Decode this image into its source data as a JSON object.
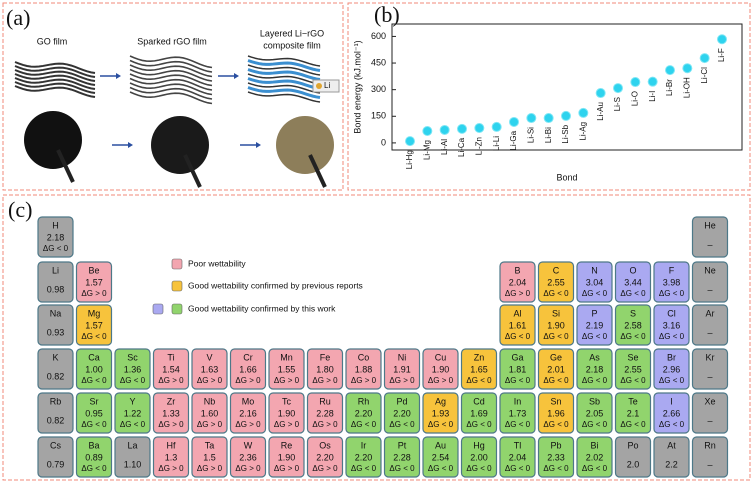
{
  "panel_a": {
    "tag": "(a)",
    "labels": [
      [
        "GO film"
      ],
      [
        "Sparked rGO film"
      ],
      [
        "Layered Li−rGO",
        "composite film"
      ]
    ],
    "legend": "Li"
  },
  "chart_data": {
    "type": "scatter",
    "tag": "(b)",
    "y_label": "Bond energy (kJ.mol⁻¹)",
    "x_label": "Bond",
    "categories": [
      "Li-Hg",
      "Li-Mg",
      "Li-Al",
      "Li-Ca",
      "Li-Zn",
      "Li-Li",
      "Li-Ga",
      "Li-Si",
      "Li-Bi",
      "Li-Sb",
      "Li-Ag",
      "Li-Au",
      "Li-S",
      "Li-O",
      "Li-I",
      "Li-Br",
      "Li-OH",
      "Li-Cl",
      "Li-F"
    ],
    "values": [
      10,
      67,
      73,
      79,
      84,
      90,
      118,
      140,
      140,
      152,
      169,
      281,
      309,
      343,
      345,
      410,
      421,
      478,
      584
    ],
    "label_colors": [
      "#222",
      "#222",
      "#222",
      "#222",
      "#222",
      "#3cb521",
      "#222",
      "#222",
      "#222",
      "#222",
      "#222",
      "#222",
      "#222",
      "#e32119",
      "#2a36c8",
      "#2a36c8",
      "#2a36c8",
      "#2a36c8",
      "#2a36c8"
    ],
    "color": "#2ed3ee",
    "ylim": [
      -40,
      670
    ],
    "yticks": [
      0,
      150,
      300,
      450,
      600
    ]
  },
  "panel_c": {
    "tag": "(c)",
    "legend": [
      {
        "text": "Poor wettability",
        "colors": [
          "#f3a6b0"
        ]
      },
      {
        "text": "Good wettability confirmed by previous reports",
        "colors": [
          "#f7c33c"
        ]
      },
      {
        "text": "Good wettability confirmed by this work",
        "colors": [
          "#aaa9f1",
          "#91d46d"
        ]
      }
    ],
    "rows": [
      [
        {
          "symbol": "H",
          "value": "2.18",
          "dg": "ΔG < 0",
          "dg_color": "#111",
          "color": "#a4a4a4"
        },
        {
          "symbol": "He",
          "value": "–",
          "color": "#a4a4a4"
        }
      ],
      [
        {
          "symbol": "Li",
          "value": "0.98",
          "color": "#a4a4a4"
        },
        {
          "symbol": "Be",
          "value": "1.57",
          "dg": "ΔG > 0",
          "dg_color": "#111",
          "color": "#f3a6b0"
        },
        {
          "symbol": "B",
          "value": "2.04",
          "dg": "ΔG > 0",
          "dg_color": "#111",
          "color": "#f3a6b0"
        },
        {
          "symbol": "C",
          "value": "2.55",
          "dg": "ΔG < 0",
          "dg_color": "#e32119",
          "color": "#f7c33c"
        },
        {
          "symbol": "N",
          "value": "3.04",
          "dg": "ΔG < 0",
          "dg_color": "#e32119",
          "color": "#aaa9f1"
        },
        {
          "symbol": "O",
          "value": "3.44",
          "dg": "ΔG < 0",
          "dg_color": "#e32119",
          "color": "#aaa9f1"
        },
        {
          "symbol": "F",
          "value": "3.98",
          "dg": "ΔG < 0",
          "dg_color": "#e32119",
          "color": "#aaa9f1"
        },
        {
          "symbol": "Ne",
          "value": "–",
          "color": "#a4a4a4"
        }
      ],
      [
        {
          "symbol": "Na",
          "value": "0.93",
          "color": "#a4a4a4"
        },
        {
          "symbol": "Mg",
          "value": "1.57",
          "dg": "ΔG < 0",
          "dg_color": "#e32119",
          "color": "#f7c33c"
        },
        {
          "symbol": "Al",
          "value": "1.61",
          "dg": "ΔG < 0",
          "dg_color": "#e32119",
          "color": "#f7c33c"
        },
        {
          "symbol": "Si",
          "value": "1.90",
          "dg": "ΔG < 0",
          "dg_color": "#e32119",
          "color": "#f7c33c"
        },
        {
          "symbol": "P",
          "value": "2.19",
          "dg": "ΔG < 0",
          "dg_color": "#e32119",
          "color": "#aaa9f1"
        },
        {
          "symbol": "S",
          "value": "2.58",
          "dg": "ΔG < 0",
          "dg_color": "#e32119",
          "color": "#91d46d"
        },
        {
          "symbol": "Cl",
          "value": "3.16",
          "dg": "ΔG < 0",
          "dg_color": "#e32119",
          "color": "#aaa9f1"
        },
        {
          "symbol": "Ar",
          "value": "–",
          "color": "#a4a4a4"
        }
      ],
      [
        {
          "symbol": "K",
          "value": "0.82",
          "color": "#a4a4a4"
        },
        {
          "symbol": "Ca",
          "value": "1.00",
          "dg": "ΔG < 0",
          "dg_color": "#e32119",
          "color": "#91d46d"
        },
        {
          "symbol": "Sc",
          "value": "1.36",
          "dg": "ΔG < 0",
          "dg_color": "#e32119",
          "color": "#91d46d"
        },
        {
          "symbol": "Ti",
          "value": "1.54",
          "dg": "ΔG > 0",
          "dg_color": "#111",
          "color": "#f3a6b0"
        },
        {
          "symbol": "V",
          "value": "1.63",
          "dg": "ΔG > 0",
          "dg_color": "#111",
          "color": "#f3a6b0"
        },
        {
          "symbol": "Cr",
          "value": "1.66",
          "dg": "ΔG > 0",
          "dg_color": "#111",
          "color": "#f3a6b0"
        },
        {
          "symbol": "Mn",
          "value": "1.55",
          "dg": "ΔG > 0",
          "dg_color": "#111",
          "color": "#f3a6b0"
        },
        {
          "symbol": "Fe",
          "value": "1.80",
          "dg": "ΔG > 0",
          "dg_color": "#111",
          "color": "#f3a6b0"
        },
        {
          "symbol": "Co",
          "value": "1.88",
          "dg": "ΔG > 0",
          "dg_color": "#111",
          "color": "#f3a6b0"
        },
        {
          "symbol": "Ni",
          "value": "1.91",
          "dg": "ΔG > 0",
          "dg_color": "#111",
          "color": "#f3a6b0"
        },
        {
          "symbol": "Cu",
          "value": "1.90",
          "dg": "ΔG > 0",
          "dg_color": "#111",
          "color": "#f3a6b0"
        },
        {
          "symbol": "Zn",
          "value": "1.65",
          "dg": "ΔG < 0",
          "dg_color": "#e32119",
          "color": "#f7c33c"
        },
        {
          "symbol": "Ga",
          "value": "1.81",
          "dg": "ΔG < 0",
          "dg_color": "#e32119",
          "color": "#91d46d"
        },
        {
          "symbol": "Ge",
          "value": "2.01",
          "dg": "ΔG < 0",
          "dg_color": "#e32119",
          "color": "#f7c33c"
        },
        {
          "symbol": "As",
          "value": "2.18",
          "dg": "ΔG < 0",
          "dg_color": "#e32119",
          "color": "#91d46d"
        },
        {
          "symbol": "Se",
          "value": "2.55",
          "dg": "ΔG < 0",
          "dg_color": "#e32119",
          "color": "#91d46d"
        },
        {
          "symbol": "Br",
          "value": "2.96",
          "dg": "ΔG < 0",
          "dg_color": "#e32119",
          "color": "#aaa9f1"
        },
        {
          "symbol": "Kr",
          "value": "–",
          "color": "#a4a4a4"
        }
      ],
      [
        {
          "symbol": "Rb",
          "value": "0.82",
          "color": "#a4a4a4"
        },
        {
          "symbol": "Sr",
          "value": "0.95",
          "dg": "ΔG < 0",
          "dg_color": "#e32119",
          "color": "#91d46d"
        },
        {
          "symbol": "Y",
          "value": "1.22",
          "dg": "ΔG < 0",
          "dg_color": "#e32119",
          "color": "#91d46d"
        },
        {
          "symbol": "Zr",
          "value": "1.33",
          "dg": "ΔG > 0",
          "dg_color": "#111",
          "color": "#f3a6b0"
        },
        {
          "symbol": "Nb",
          "value": "1.60",
          "dg": "ΔG > 0",
          "dg_color": "#111",
          "color": "#f3a6b0"
        },
        {
          "symbol": "Mo",
          "value": "2.16",
          "dg": "ΔG > 0",
          "dg_color": "#111",
          "color": "#f3a6b0"
        },
        {
          "symbol": "Tc",
          "value": "1.90",
          "dg": "ΔG > 0",
          "dg_color": "#111",
          "color": "#f3a6b0"
        },
        {
          "symbol": "Ru",
          "value": "2.28",
          "dg": "ΔG > 0",
          "dg_color": "#111",
          "color": "#f3a6b0"
        },
        {
          "symbol": "Rh",
          "value": "2.20",
          "dg": "ΔG < 0",
          "dg_color": "#e32119",
          "color": "#91d46d"
        },
        {
          "symbol": "Pd",
          "value": "2.20",
          "dg": "ΔG < 0",
          "dg_color": "#e32119",
          "color": "#91d46d"
        },
        {
          "symbol": "Ag",
          "value": "1.93",
          "dg": "ΔG < 0",
          "dg_color": "#e32119",
          "color": "#f7c33c"
        },
        {
          "symbol": "Cd",
          "value": "1.69",
          "dg": "ΔG < 0",
          "dg_color": "#e32119",
          "color": "#91d46d"
        },
        {
          "symbol": "In",
          "value": "1.73",
          "dg": "ΔG < 0",
          "dg_color": "#e32119",
          "color": "#91d46d"
        },
        {
          "symbol": "Sn",
          "value": "1.96",
          "dg": "ΔG < 0",
          "dg_color": "#e32119",
          "color": "#f7c33c"
        },
        {
          "symbol": "Sb",
          "value": "2.05",
          "dg": "ΔG < 0",
          "dg_color": "#e32119",
          "color": "#91d46d"
        },
        {
          "symbol": "Te",
          "value": "2.1",
          "dg": "ΔG < 0",
          "dg_color": "#e32119",
          "color": "#91d46d"
        },
        {
          "symbol": "I",
          "value": "2.66",
          "dg": "ΔG < 0",
          "dg_color": "#e32119",
          "color": "#aaa9f1"
        },
        {
          "symbol": "Xe",
          "value": "–",
          "color": "#a4a4a4"
        }
      ],
      [
        {
          "symbol": "Cs",
          "value": "0.79",
          "color": "#a4a4a4"
        },
        {
          "symbol": "Ba",
          "value": "0.89",
          "dg": "ΔG < 0",
          "dg_color": "#e32119",
          "color": "#91d46d"
        },
        {
          "symbol": "La",
          "value": "1.10",
          "color": "#a4a4a4"
        },
        {
          "symbol": "Hf",
          "value": "1.3",
          "dg": "ΔG > 0",
          "dg_color": "#111",
          "color": "#f3a6b0"
        },
        {
          "symbol": "Ta",
          "value": "1.5",
          "dg": "ΔG > 0",
          "dg_color": "#111",
          "color": "#f3a6b0"
        },
        {
          "symbol": "W",
          "value": "2.36",
          "dg": "ΔG > 0",
          "dg_color": "#111",
          "color": "#f3a6b0"
        },
        {
          "symbol": "Re",
          "value": "1.90",
          "dg": "ΔG > 0",
          "dg_color": "#111",
          "color": "#f3a6b0"
        },
        {
          "symbol": "Os",
          "value": "2.20",
          "dg": "ΔG > 0",
          "dg_color": "#111",
          "color": "#f3a6b0"
        },
        {
          "symbol": "Ir",
          "value": "2.20",
          "dg": "ΔG < 0",
          "dg_color": "#e32119",
          "color": "#91d46d"
        },
        {
          "symbol": "Pt",
          "value": "2.28",
          "dg": "ΔG < 0",
          "dg_color": "#e32119",
          "color": "#91d46d"
        },
        {
          "symbol": "Au",
          "value": "2.54",
          "dg": "ΔG < 0",
          "dg_color": "#e32119",
          "color": "#91d46d"
        },
        {
          "symbol": "Hg",
          "value": "2.00",
          "dg": "ΔG < 0",
          "dg_color": "#e32119",
          "color": "#91d46d"
        },
        {
          "symbol": "Tl",
          "value": "2.04",
          "dg": "ΔG < 0",
          "dg_color": "#e32119",
          "color": "#91d46d"
        },
        {
          "symbol": "Pb",
          "value": "2.33",
          "dg": "ΔG < 0",
          "dg_color": "#e32119",
          "color": "#91d46d"
        },
        {
          "symbol": "Bi",
          "value": "2.02",
          "dg": "ΔG < 0",
          "dg_color": "#e32119",
          "color": "#91d46d"
        },
        {
          "symbol": "Po",
          "value": "2.0",
          "color": "#a4a4a4"
        },
        {
          "symbol": "At",
          "value": "2.2",
          "color": "#a4a4a4"
        },
        {
          "symbol": "Rn",
          "value": "–",
          "color": "#a4a4a4"
        }
      ]
    ]
  }
}
